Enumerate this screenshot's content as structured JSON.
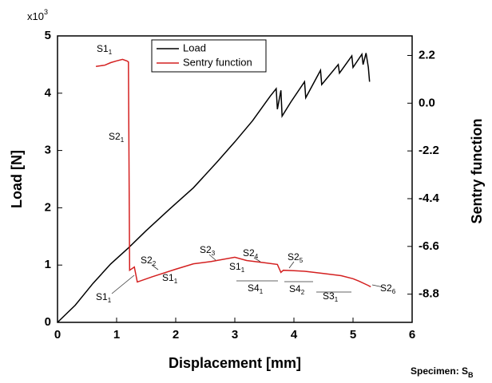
{
  "chart_data": {
    "type": "line",
    "xlabel": "Displacement [mm]",
    "ylabel": "Load [N]",
    "y2label": "Sentry function",
    "y_multiplier": {
      "text": "x10",
      "sup": "3"
    },
    "footnote": {
      "text": "Specimen: S",
      "sub": "B"
    },
    "xlim": [
      0,
      6
    ],
    "xticks": [
      0,
      1,
      2,
      3,
      4,
      5,
      6
    ],
    "ylim": [
      0,
      5
    ],
    "yticks": [
      0,
      1,
      2,
      3,
      4,
      5
    ],
    "y2lim": [
      -10.1,
      3.1
    ],
    "y2ticks": [
      2.2,
      {
        "value": 0,
        "label": "0.0"
      },
      -2.2,
      -4.4,
      -6.6,
      -8.8
    ],
    "legend": "top-center",
    "series": [
      {
        "name": "Load",
        "color": "#000000",
        "axis": "y",
        "x": [
          0,
          0.3,
          0.6,
          0.9,
          1.2,
          1.5,
          1.9,
          2.3,
          2.7,
          3.0,
          3.3,
          3.6,
          3.7,
          3.72,
          3.78,
          3.8,
          3.95,
          4.18,
          4.2,
          4.45,
          4.47,
          4.75,
          4.77,
          4.98,
          5.0,
          5.15,
          5.17,
          5.22,
          5.26,
          5.28
        ],
        "values": [
          0,
          0.3,
          0.68,
          1.02,
          1.3,
          1.6,
          1.98,
          2.35,
          2.8,
          3.15,
          3.52,
          3.95,
          4.08,
          3.72,
          4.05,
          3.6,
          3.85,
          4.2,
          3.92,
          4.4,
          4.15,
          4.5,
          4.35,
          4.65,
          4.45,
          4.68,
          4.5,
          4.7,
          4.45,
          4.2
        ]
      },
      {
        "name": "Sentry function",
        "color": "#d42020",
        "axis": "y2",
        "x": [
          0.65,
          0.8,
          0.9,
          1.0,
          1.1,
          1.18,
          1.2,
          1.22,
          1.3,
          1.35,
          1.6,
          2.0,
          2.3,
          2.6,
          3.0,
          3.2,
          3.5,
          3.72,
          3.78,
          3.82,
          4.0,
          4.2,
          4.5,
          4.8,
          5.0,
          5.1,
          5.25,
          5.3
        ],
        "values": [
          1.69,
          1.75,
          1.87,
          1.95,
          2.02,
          1.94,
          1.9,
          -7.7,
          -7.55,
          -8.24,
          -8.0,
          -7.65,
          -7.4,
          -7.3,
          -7.1,
          -7.25,
          -7.35,
          -7.43,
          -7.8,
          -7.7,
          -7.72,
          -7.75,
          -7.85,
          -7.95,
          -8.09,
          -8.2,
          -8.39,
          -8.46
        ]
      }
    ],
    "annotations": [
      {
        "text": "S1",
        "sub": "1"
      },
      {
        "text": "S2",
        "sub": "1"
      },
      {
        "text": "S2",
        "sub": "2"
      },
      {
        "text": "S1",
        "sub": "1"
      },
      {
        "text": "S1",
        "sub": "1"
      },
      {
        "text": "S2",
        "sub": "3"
      },
      {
        "text": "S1",
        "sub": "1"
      },
      {
        "text": "S2",
        "sub": "4"
      },
      {
        "text": "S4",
        "sub": "1"
      },
      {
        "text": "S2",
        "sub": "5"
      },
      {
        "text": "S4",
        "sub": "2"
      },
      {
        "text": "S3",
        "sub": "1"
      },
      {
        "text": "S2",
        "sub": "6"
      }
    ]
  }
}
